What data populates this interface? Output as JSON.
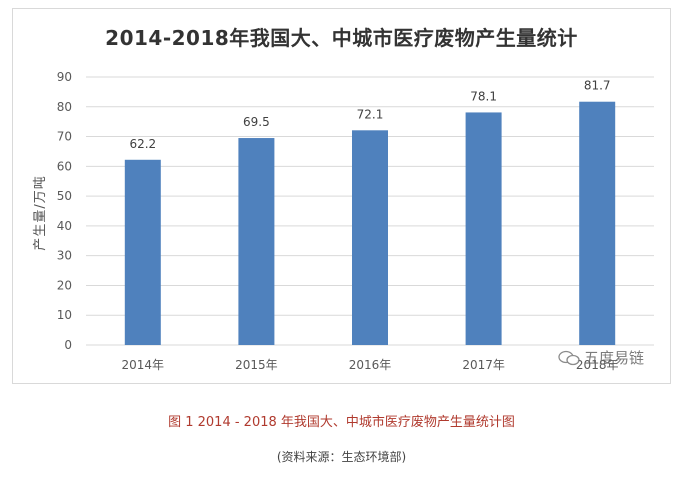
{
  "chart_data": {
    "type": "bar",
    "title": "2014-2018年我国大、中城市医疗废物产生量统计",
    "xlabel": "",
    "ylabel": "产生量/万吨",
    "categories": [
      "2014年",
      "2015年",
      "2016年",
      "2017年",
      "2018年"
    ],
    "values": [
      62.2,
      69.5,
      72.1,
      78.1,
      81.7
    ],
    "ylim": [
      0,
      90
    ],
    "yticks": [
      0,
      10,
      20,
      30,
      40,
      50,
      60,
      70,
      80,
      90
    ],
    "grid": true,
    "bar_color": "#4f81bd",
    "grid_color": "#d9d9d9"
  },
  "watermark": {
    "text": "五度易链"
  },
  "caption": "图 1  2014 - 2018 年我国大、中城市医疗废物产生量统计图",
  "source": "(资料来源：生态环境部)"
}
